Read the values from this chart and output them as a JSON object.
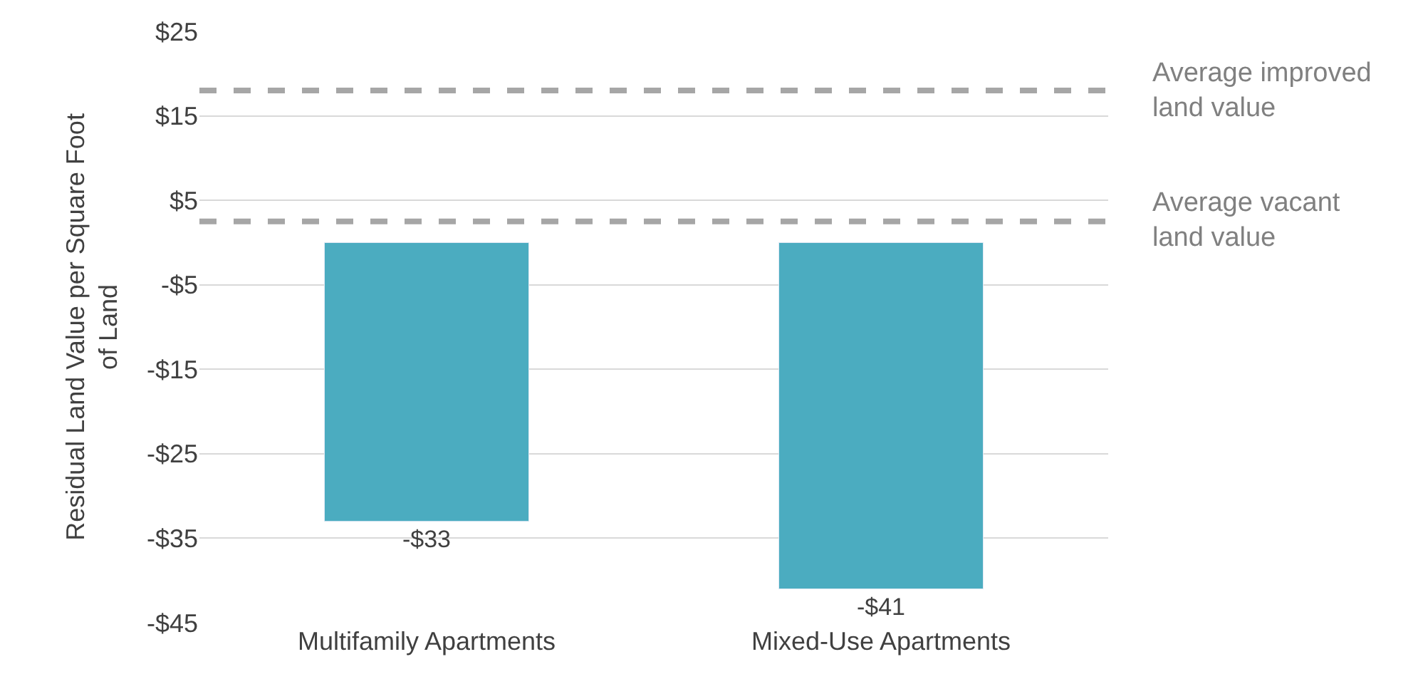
{
  "chart_data": {
    "type": "bar",
    "ylabel": "Residual Land Value per Square Foot of Land",
    "categories": [
      "Multifamily Apartments",
      "Mixed-Use Apartments"
    ],
    "series": [
      {
        "color": "#4bacc0",
        "values": [
          -33,
          -41
        ]
      }
    ],
    "value_labels": [
      "-$33",
      "-$41"
    ],
    "ylim": [
      -45,
      25
    ],
    "yticks": [
      {
        "value": 25,
        "label": "$25"
      },
      {
        "value": 15,
        "label": "$15"
      },
      {
        "value": 5,
        "label": "$5"
      },
      {
        "value": -5,
        "label": "-$5"
      },
      {
        "value": -15,
        "label": "-$15"
      },
      {
        "value": -25,
        "label": "-$25"
      },
      {
        "value": -35,
        "label": "-$35"
      },
      {
        "value": -45,
        "label": "-$45"
      }
    ],
    "ref_lines": [
      {
        "axis": "y",
        "value": 18,
        "label": "Average improved land value",
        "color": "#a6a6a6",
        "line_style": "dashed"
      },
      {
        "axis": "y",
        "value": 2.5,
        "label": "Average vacant land value",
        "color": "#a6a6a6",
        "line_style": "dashed"
      }
    ],
    "grid": "y",
    "legend": false
  }
}
